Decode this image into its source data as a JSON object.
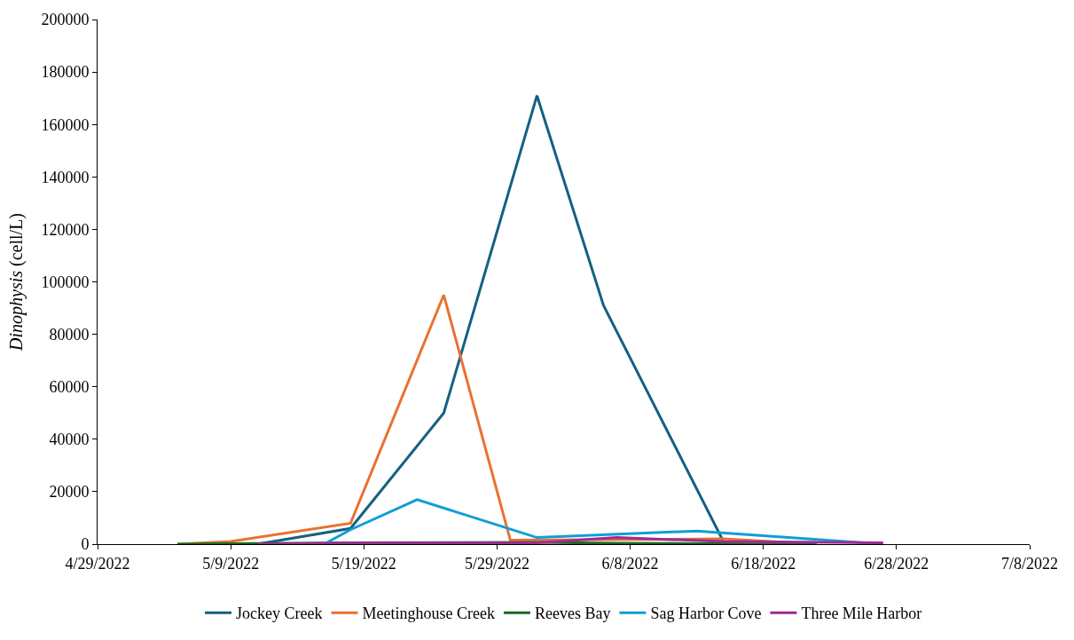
{
  "chart_data": {
    "type": "line",
    "ylabel": "Dinophysis (cell/L)",
    "legend": "bottom",
    "marker": "none",
    "line_style": "solid",
    "xlim": [
      "2022-04-29",
      "2022-07-08"
    ],
    "xticks": [
      {
        "value": "2022-04-29",
        "label": "4/29/2022"
      },
      {
        "value": "2022-05-09",
        "label": "5/9/2022"
      },
      {
        "value": "2022-05-19",
        "label": "5/19/2022"
      },
      {
        "value": "2022-05-29",
        "label": "5/29/2022"
      },
      {
        "value": "2022-06-08",
        "label": "6/8/2022"
      },
      {
        "value": "2022-06-18",
        "label": "6/18/2022"
      },
      {
        "value": "2022-06-28",
        "label": "6/28/2022"
      },
      {
        "value": "2022-07-08",
        "label": "7/8/2022"
      }
    ],
    "ylim": [
      0,
      200000
    ],
    "yticks": [
      0,
      20000,
      40000,
      60000,
      80000,
      100000,
      120000,
      140000,
      160000,
      180000,
      200000
    ],
    "series": [
      {
        "name": "Jockey Creek",
        "color": "#156082",
        "x": [
          "2022-05-11",
          "2022-05-18",
          "2022-05-25",
          "2022-06-01",
          "2022-06-06",
          "2022-06-15"
        ],
        "values": [
          0,
          6000,
          50000,
          171000,
          91000,
          1000
        ]
      },
      {
        "name": "Meetinghouse Creek",
        "color": "#e97132",
        "x": [
          "2022-05-05",
          "2022-05-09",
          "2022-05-18",
          "2022-05-25",
          "2022-05-30",
          "2022-06-15",
          "2022-06-22"
        ],
        "values": [
          0,
          1000,
          8000,
          95000,
          1500,
          2000,
          0
        ]
      },
      {
        "name": "Reeves Bay",
        "color": "#196b24",
        "x": [
          "2022-05-05",
          "2022-05-18",
          "2022-06-01",
          "2022-06-07",
          "2022-06-15",
          "2022-06-22"
        ],
        "values": [
          0,
          500,
          700,
          300,
          200,
          0
        ]
      },
      {
        "name": "Sag Harbor Cove",
        "color": "#0f9ed5",
        "x": [
          "2022-05-16",
          "2022-05-18",
          "2022-05-23",
          "2022-06-01",
          "2022-06-13",
          "2022-06-27"
        ],
        "values": [
          0,
          5500,
          17000,
          2500,
          5000,
          0
        ]
      },
      {
        "name": "Three Mile Harbor",
        "color": "#a02b93",
        "x": [
          "2022-05-11",
          "2022-05-18",
          "2022-06-01",
          "2022-06-07",
          "2022-06-15",
          "2022-06-27"
        ],
        "values": [
          0,
          300,
          500,
          2500,
          1000,
          500
        ]
      }
    ]
  }
}
